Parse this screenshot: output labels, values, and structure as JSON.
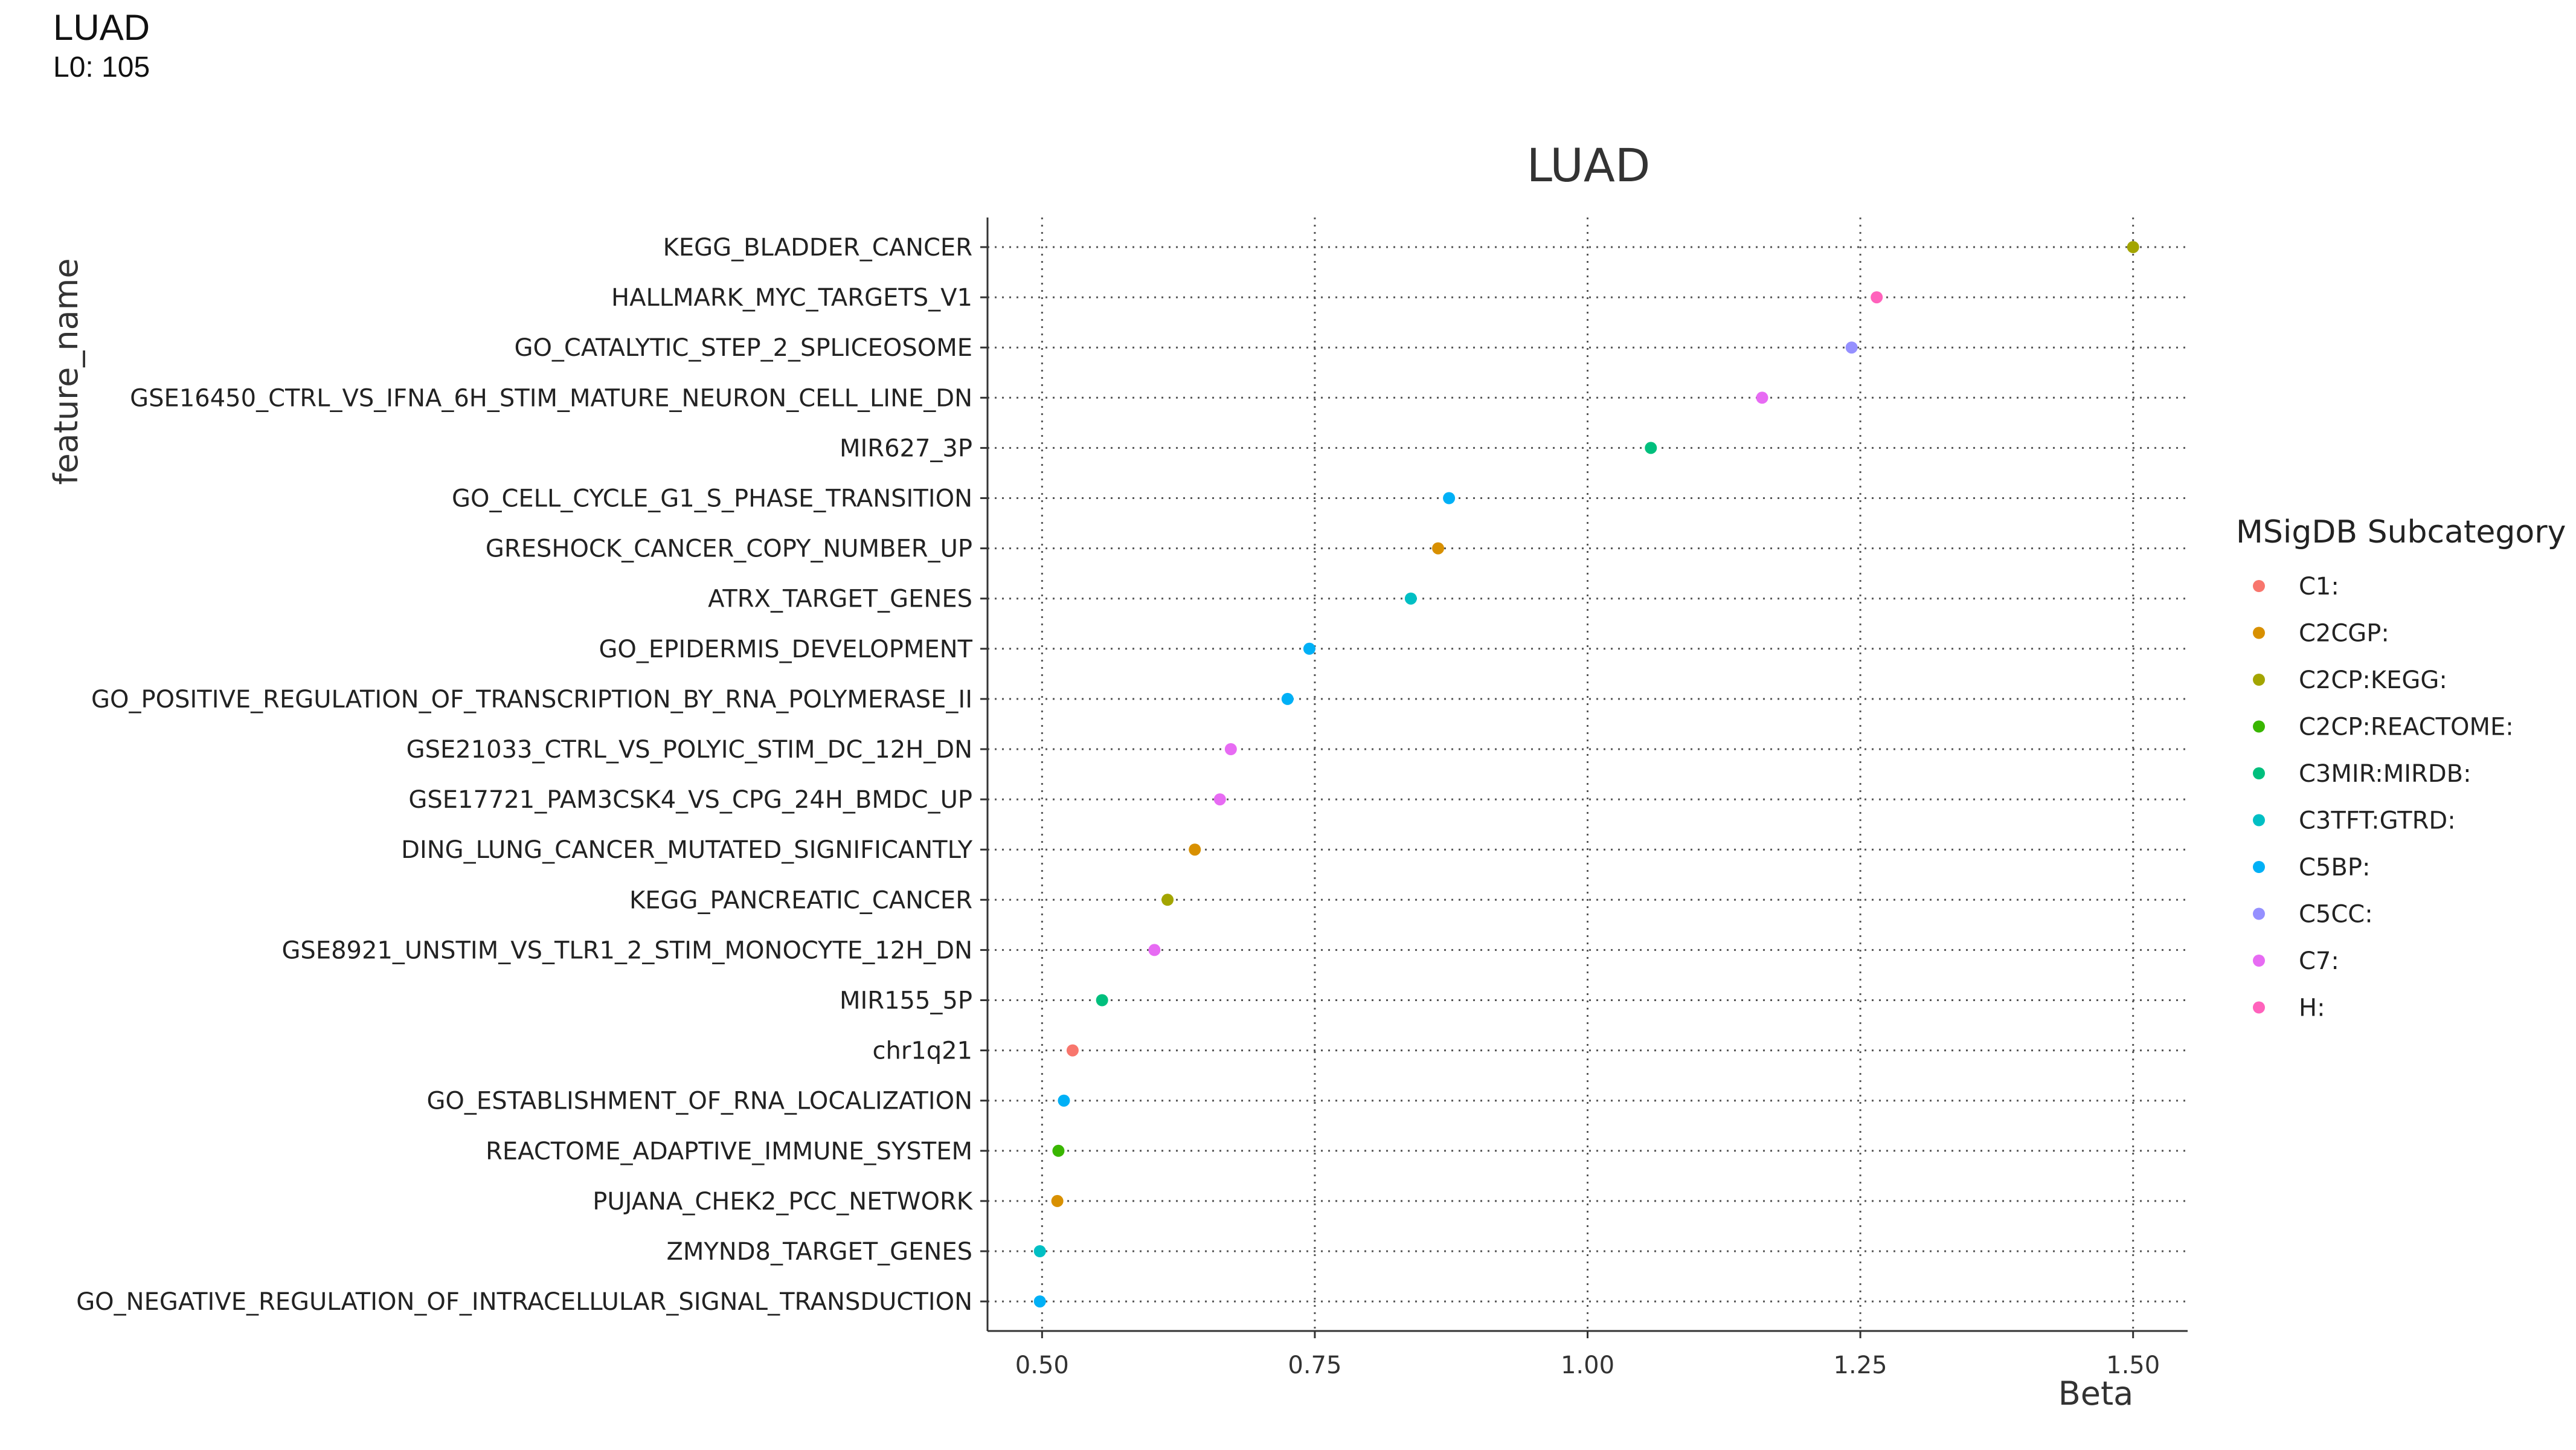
{
  "header": {
    "title": "LUAD",
    "subtitle": "L0: 105"
  },
  "chart_data": {
    "type": "scatter",
    "title": "LUAD",
    "xlabel": "Beta",
    "ylabel": "feature_name",
    "xlim": [
      0.45,
      1.55
    ],
    "xticks": [
      0.5,
      0.75,
      1.0,
      1.25,
      1.5
    ],
    "xtick_labels": [
      "0.50",
      "0.75",
      "1.00",
      "1.25",
      "1.50"
    ],
    "grid": true,
    "legend": {
      "title": "MSigDB Subcategory",
      "placement": "right",
      "entries": [
        {
          "label": "C1:",
          "color": "#F8766D"
        },
        {
          "label": "C2CGP:",
          "color": "#D89000"
        },
        {
          "label": "C2CP:KEGG:",
          "color": "#A3A500"
        },
        {
          "label": "C2CP:REACTOME:",
          "color": "#39B600"
        },
        {
          "label": "C3MIR:MIRDB:",
          "color": "#00BF7D"
        },
        {
          "label": "C3TFT:GTRD:",
          "color": "#00BFC4"
        },
        {
          "label": "C5BP:",
          "color": "#00B0F6"
        },
        {
          "label": "C5CC:",
          "color": "#9590FF"
        },
        {
          "label": "C7:",
          "color": "#E76BF3"
        },
        {
          "label": "H:",
          "color": "#FF62BC"
        }
      ]
    },
    "points": [
      {
        "feature": "KEGG_BLADDER_CANCER",
        "beta": 1.5,
        "category": "C2CP:KEGG:"
      },
      {
        "feature": "HALLMARK_MYC_TARGETS_V1",
        "beta": 1.265,
        "category": "H:"
      },
      {
        "feature": "GO_CATALYTIC_STEP_2_SPLICEOSOME",
        "beta": 1.242,
        "category": "C5CC:"
      },
      {
        "feature": "GSE16450_CTRL_VS_IFNA_6H_STIM_MATURE_NEURON_CELL_LINE_DN",
        "beta": 1.16,
        "category": "C7:"
      },
      {
        "feature": "MIR627_3P",
        "beta": 1.058,
        "category": "C3MIR:MIRDB:"
      },
      {
        "feature": "GO_CELL_CYCLE_G1_S_PHASE_TRANSITION",
        "beta": 0.873,
        "category": "C5BP:"
      },
      {
        "feature": "GRESHOCK_CANCER_COPY_NUMBER_UP",
        "beta": 0.863,
        "category": "C2CGP:"
      },
      {
        "feature": "ATRX_TARGET_GENES",
        "beta": 0.838,
        "category": "C3TFT:GTRD:"
      },
      {
        "feature": "GO_EPIDERMIS_DEVELOPMENT",
        "beta": 0.745,
        "category": "C5BP:"
      },
      {
        "feature": "GO_POSITIVE_REGULATION_OF_TRANSCRIPTION_BY_RNA_POLYMERASE_II",
        "beta": 0.725,
        "category": "C5BP:"
      },
      {
        "feature": "GSE21033_CTRL_VS_POLYIC_STIM_DC_12H_DN",
        "beta": 0.673,
        "category": "C7:"
      },
      {
        "feature": "GSE17721_PAM3CSK4_VS_CPG_24H_BMDC_UP",
        "beta": 0.663,
        "category": "C7:"
      },
      {
        "feature": "DING_LUNG_CANCER_MUTATED_SIGNIFICANTLY",
        "beta": 0.64,
        "category": "C2CGP:"
      },
      {
        "feature": "KEGG_PANCREATIC_CANCER",
        "beta": 0.615,
        "category": "C2CP:KEGG:"
      },
      {
        "feature": "GSE8921_UNSTIM_VS_TLR1_2_STIM_MONOCYTE_12H_DN",
        "beta": 0.603,
        "category": "C7:"
      },
      {
        "feature": "MIR155_5P",
        "beta": 0.555,
        "category": "C3MIR:MIRDB:"
      },
      {
        "feature": "chr1q21",
        "beta": 0.528,
        "category": "C1:"
      },
      {
        "feature": "GO_ESTABLISHMENT_OF_RNA_LOCALIZATION",
        "beta": 0.52,
        "category": "C5BP:"
      },
      {
        "feature": "REACTOME_ADAPTIVE_IMMUNE_SYSTEM",
        "beta": 0.515,
        "category": "C2CP:REACTOME:"
      },
      {
        "feature": "PUJANA_CHEK2_PCC_NETWORK",
        "beta": 0.514,
        "category": "C2CGP:"
      },
      {
        "feature": "ZMYND8_TARGET_GENES",
        "beta": 0.498,
        "category": "C3TFT:GTRD:"
      },
      {
        "feature": "GO_NEGATIVE_REGULATION_OF_INTRACELLULAR_SIGNAL_TRANSDUCTION",
        "beta": 0.498,
        "category": "C5BP:"
      }
    ]
  }
}
